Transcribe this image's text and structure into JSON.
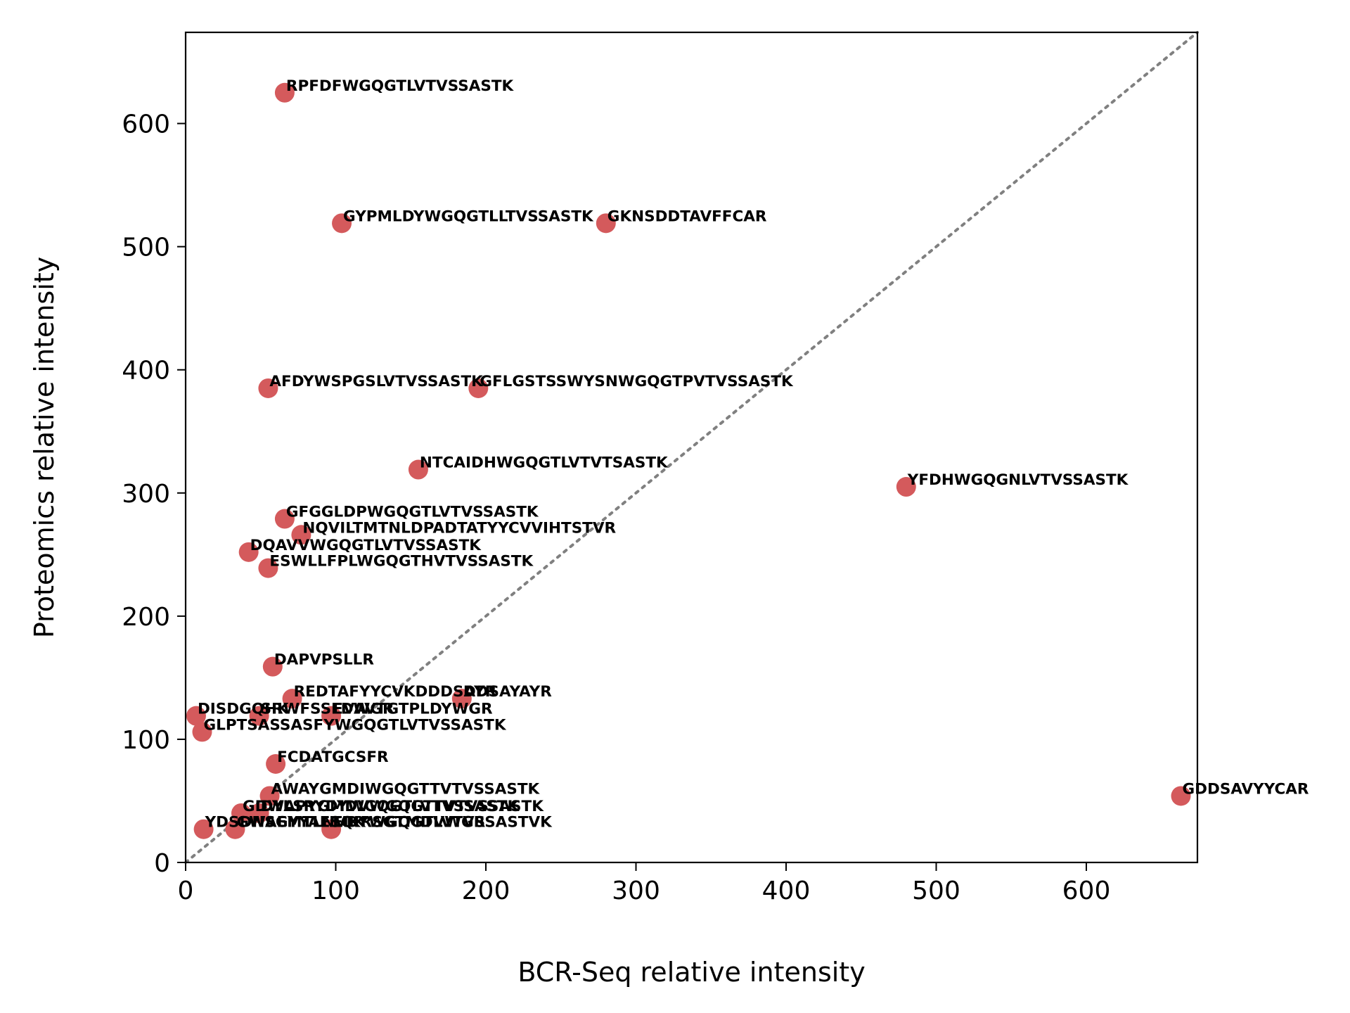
{
  "chart_data": {
    "type": "scatter",
    "title": "",
    "xlabel": "BCR-Seq relative intensity",
    "ylabel": "Proteomics relative intensity",
    "xlim": [
      0,
      674
    ],
    "ylim": [
      0,
      674
    ],
    "x_ticks": [
      0,
      100,
      200,
      300,
      400,
      500,
      600
    ],
    "y_ticks": [
      0,
      100,
      200,
      300,
      400,
      500,
      600
    ],
    "x_tick_labels": [
      "0",
      "100",
      "200",
      "300",
      "400",
      "500",
      "600"
    ],
    "y_tick_labels": [
      "0",
      "100",
      "200",
      "300",
      "400",
      "500",
      "600"
    ],
    "grid": false,
    "point_color": "#d45a5c",
    "reference_line": {
      "style": "dotted",
      "color": "#808080",
      "from": [
        0,
        0
      ],
      "to": [
        674,
        674
      ]
    },
    "points": [
      {
        "x": 66,
        "y": 625,
        "label": "RPFDFWGQGTLVTVSSASTK"
      },
      {
        "x": 104,
        "y": 519,
        "label": "GYPMLDYWGQGTLLTVSSASTK"
      },
      {
        "x": 280,
        "y": 519,
        "label": "GKNSDDTAVFFCAR"
      },
      {
        "x": 55,
        "y": 385,
        "label": "AFDYWSPGSLVTVSSASTK"
      },
      {
        "x": 195,
        "y": 385,
        "label": "GFLGSTSSWYSNWGQGTPVTVSSASTK"
      },
      {
        "x": 155,
        "y": 319,
        "label": "NTCAIDHWGQGTLVTVTSASTK"
      },
      {
        "x": 480,
        "y": 305,
        "label": "YFDHWGQGNLVTVSSASTK"
      },
      {
        "x": 66,
        "y": 279,
        "label": "GFGGLDPWGQGTLVTVSSASTK"
      },
      {
        "x": 77,
        "y": 266,
        "label": "NQVILTMTNLDPADTATYYCVVIHTSTVR"
      },
      {
        "x": 42,
        "y": 252,
        "label": "DQAVVWGQGTLVTVSSASTK"
      },
      {
        "x": 55,
        "y": 239,
        "label": "ESWLLFPLWGQGTHVTVSSASTK"
      },
      {
        "x": 58,
        "y": 159,
        "label": "DAPVPSLLR"
      },
      {
        "x": 71,
        "y": 133,
        "label": "REDTAFYYCVKDDDSAYR"
      },
      {
        "x": 184,
        "y": 133,
        "label": "DDSAYAYR"
      },
      {
        "x": 7,
        "y": 119,
        "label": "DISDGQHK"
      },
      {
        "x": 49,
        "y": 119,
        "label": "SRWFSSLDWGR"
      },
      {
        "x": 97,
        "y": 119,
        "label": "EVAVTGTPLDYWGR"
      },
      {
        "x": 11,
        "y": 106,
        "label": "GLPTSASSASFYWGQGTLVTVSSASTK"
      },
      {
        "x": 60,
        "y": 80,
        "label": "FCDATGCSFR"
      },
      {
        "x": 56,
        "y": 54,
        "label": "AWAYGMDIWGQGTTVTVSSASTK"
      },
      {
        "x": 663,
        "y": 54,
        "label": "GDDSAVYYCAR"
      },
      {
        "x": 37,
        "y": 40,
        "label": "GDWAPYGMDVWGQGTTVTVSSASTK"
      },
      {
        "x": 49,
        "y": 40,
        "label": "DYLSRYDYWGQGTLVTVSSASTK"
      },
      {
        "x": 12,
        "y": 27,
        "label": "YDSDNSGYYAESQK"
      },
      {
        "x": 33,
        "y": 27,
        "label": "GWAEMTLNVDYWGQGTLVTVSSASTVK"
      },
      {
        "x": 97,
        "y": 27,
        "label": "EIKRSGTMDVWGR"
      }
    ]
  }
}
